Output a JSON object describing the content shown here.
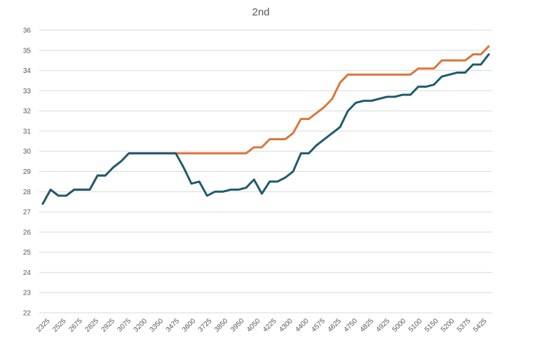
{
  "chart_data": {
    "type": "line",
    "title": "2nd",
    "xlabel": "",
    "ylabel": "",
    "ylim": [
      22,
      36
    ],
    "yticks": [
      22,
      23,
      24,
      25,
      26,
      27,
      28,
      29,
      30,
      31,
      32,
      33,
      34,
      35,
      36
    ],
    "grid": true,
    "legend": "none",
    "x_tick_labels": [
      "2325",
      "2525",
      "2675",
      "2825",
      "2925",
      "3075",
      "3200",
      "3350",
      "3475",
      "3600",
      "3725",
      "3850",
      "3950",
      "4050",
      "4225",
      "4300",
      "4400",
      "4575",
      "4625",
      "4750",
      "4825",
      "4925",
      "5000",
      "5100",
      "5150",
      "5200",
      "5375",
      "5425"
    ],
    "series": [
      {
        "color": "#1e5b6e",
        "values": [
          27.4,
          28.1,
          27.8,
          27.8,
          28.1,
          28.1,
          28.1,
          28.8,
          28.8,
          29.2,
          29.5,
          29.9,
          29.9,
          29.9,
          29.9,
          29.9,
          29.9,
          29.9,
          29.2,
          28.4,
          28.5,
          27.8,
          28.0,
          28.0,
          28.1,
          28.1,
          28.2,
          28.6,
          27.9,
          28.5,
          28.5,
          28.7,
          29.0,
          29.9,
          29.9,
          30.3,
          30.6,
          30.9,
          31.2,
          32.0,
          32.4,
          32.5,
          32.5,
          32.6,
          32.7,
          32.7,
          32.8,
          32.8,
          33.2,
          33.2,
          33.3,
          33.7,
          33.8,
          33.9,
          33.9,
          34.3,
          34.3,
          34.8
        ]
      },
      {
        "color": "#d9773a",
        "values": [
          27.4,
          28.1,
          27.8,
          27.8,
          28.1,
          28.1,
          28.1,
          28.8,
          28.8,
          29.2,
          29.5,
          29.9,
          29.9,
          29.9,
          29.9,
          29.9,
          29.9,
          29.9,
          29.9,
          29.9,
          29.9,
          29.9,
          29.9,
          29.9,
          29.9,
          29.9,
          29.9,
          30.2,
          30.2,
          30.6,
          30.6,
          30.6,
          30.9,
          31.6,
          31.6,
          31.9,
          32.2,
          32.6,
          33.4,
          33.8,
          33.8,
          33.8,
          33.8,
          33.8,
          33.8,
          33.8,
          33.8,
          33.8,
          34.1,
          34.1,
          34.1,
          34.5,
          34.5,
          34.5,
          34.5,
          34.8,
          34.8,
          35.2
        ]
      }
    ]
  }
}
